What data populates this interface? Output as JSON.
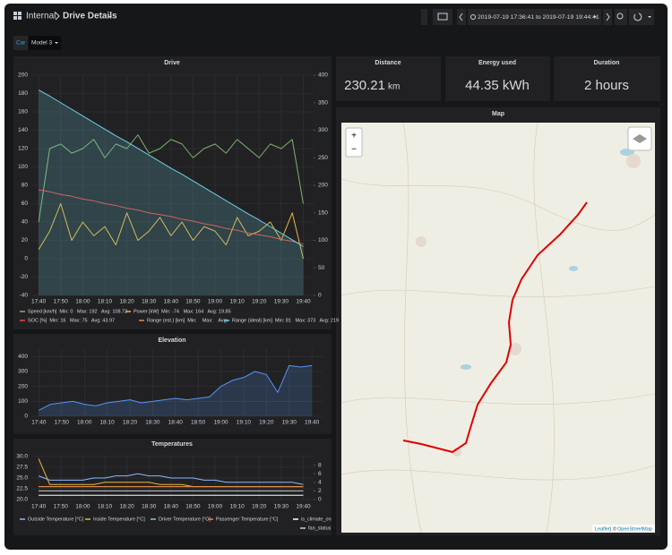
{
  "header": {
    "breadcrumb": "Internal",
    "title": "Drive Details",
    "time_range": "2019-07-19 17:36:41 to 2019-07-19 19:44:41"
  },
  "variables": {
    "label": "Car",
    "value": "Model 3"
  },
  "stats": [
    {
      "title": "Distance",
      "value": "230.21",
      "unit": "km"
    },
    {
      "title": "Energy used",
      "value": "44.35 kWh"
    },
    {
      "title": "Duration",
      "value": "2 hours"
    }
  ],
  "map": {
    "title": "Map",
    "zoom_in": "+",
    "zoom_out": "−",
    "attribution_link": "Leaflet",
    "attribution_text": "| ©",
    "attribution_source": "OpenStreetMap"
  },
  "charts": [
    {
      "type": "line",
      "title": "Drive",
      "x": [
        "17:40",
        "17:45",
        "17:50",
        "17:55",
        "18:00",
        "18:05",
        "18:10",
        "18:15",
        "18:20",
        "18:25",
        "18:30",
        "18:35",
        "18:40",
        "18:45",
        "18:50",
        "18:55",
        "19:00",
        "19:05",
        "19:10",
        "19:15",
        "19:20",
        "19:25",
        "19:30",
        "19:35",
        "19:40"
      ],
      "xlim": [
        "17:36:41",
        "19:44:41"
      ],
      "xticks": [
        "17:40",
        "17:50",
        "18:00",
        "18:10",
        "18:20",
        "18:30",
        "18:40",
        "18:50",
        "19:00",
        "19:10",
        "19:20",
        "19:30",
        "19:40"
      ],
      "ylim": [
        -40,
        200
      ],
      "yticks": [
        -40,
        -20,
        0,
        20,
        40,
        60,
        80,
        100,
        120,
        140,
        160,
        180,
        200
      ],
      "y2lim": [
        0,
        400
      ],
      "y2ticks": [
        0,
        50,
        100,
        150,
        200,
        250,
        300,
        350,
        400
      ],
      "grid": true,
      "series": [
        {
          "name": "Speed [km/h]",
          "stats": "Min: 0   Max: 192   Avg: 108.72",
          "color": "#7eb26d",
          "values": [
            40,
            120,
            125,
            115,
            120,
            130,
            110,
            125,
            120,
            135,
            115,
            120,
            130,
            125,
            110,
            120,
            125,
            115,
            130,
            120,
            110,
            125,
            120,
            130,
            60
          ]
        },
        {
          "name": "Power [kW]",
          "stats": "Min: -74   Max: 164   Avg: 19.85",
          "color": "#eab839",
          "values": [
            10,
            30,
            60,
            20,
            40,
            25,
            35,
            15,
            50,
            20,
            30,
            45,
            25,
            40,
            20,
            35,
            30,
            15,
            45,
            25,
            30,
            40,
            20,
            50,
            0
          ]
        },
        {
          "name": "SOC [%]",
          "stats": "Min: 16   Max: 75   Avg: 43.97",
          "color": "#e24d42",
          "values": [
            75,
            73,
            70,
            68,
            65,
            63,
            60,
            58,
            55,
            53,
            50,
            48,
            46,
            43,
            41,
            38,
            36,
            33,
            31,
            28,
            26,
            24,
            21,
            19,
            16
          ]
        },
        {
          "name": "Range (est.) [km]",
          "stats": "Min:    Max:    Avg:",
          "color": "#ef843c",
          "axis": "y2",
          "values": [
            null,
            null,
            null,
            null,
            null,
            null,
            null,
            null,
            null,
            null,
            null,
            null,
            null,
            null,
            null,
            null,
            null,
            null,
            null,
            null,
            null,
            null,
            null,
            null,
            null
          ]
        },
        {
          "name": "Range (ideal) [km]",
          "stats": "Min: 81   Max: 373   Avg: 219",
          "color": "#6ed0e0",
          "axis": "y2",
          "fill": true,
          "values": [
            373,
            362,
            350,
            338,
            326,
            314,
            302,
            290,
            279,
            267,
            255,
            243,
            231,
            220,
            208,
            196,
            184,
            172,
            160,
            148,
            137,
            125,
            113,
            101,
            89
          ]
        }
      ]
    },
    {
      "type": "line",
      "title": "Elevation",
      "x": [
        "17:40",
        "17:45",
        "17:50",
        "17:55",
        "18:00",
        "18:05",
        "18:10",
        "18:15",
        "18:20",
        "18:25",
        "18:30",
        "18:35",
        "18:40",
        "18:45",
        "18:50",
        "18:55",
        "19:00",
        "19:05",
        "19:10",
        "19:15",
        "19:20",
        "19:25",
        "19:30",
        "19:35",
        "19:40"
      ],
      "xlim": [
        "17:36:41",
        "19:44:41"
      ],
      "xticks": [
        "17:40",
        "17:50",
        "18:00",
        "18:10",
        "18:20",
        "18:30",
        "18:40",
        "18:50",
        "19:00",
        "19:10",
        "19:20",
        "19:30",
        "19:40"
      ],
      "ylim": [
        0,
        450
      ],
      "yticks": [
        0,
        100,
        200,
        300,
        400
      ],
      "grid": true,
      "series": [
        {
          "color": "#5794f2",
          "fill": true,
          "values": [
            40,
            80,
            90,
            100,
            80,
            70,
            90,
            100,
            110,
            90,
            100,
            110,
            120,
            110,
            120,
            130,
            200,
            240,
            260,
            300,
            280,
            160,
            340,
            330,
            340
          ]
        }
      ]
    },
    {
      "type": "line",
      "title": "Temperatures",
      "x": [
        "17:40",
        "17:45",
        "17:50",
        "17:55",
        "18:00",
        "18:05",
        "18:10",
        "18:15",
        "18:20",
        "18:25",
        "18:30",
        "18:35",
        "18:40",
        "18:45",
        "18:50",
        "18:55",
        "19:00",
        "19:05",
        "19:10",
        "19:15",
        "19:20",
        "19:25",
        "19:30",
        "19:35",
        "19:40"
      ],
      "xlim": [
        "17:36:41",
        "19:44:41"
      ],
      "xticks": [
        "17:40",
        "17:50",
        "18:00",
        "18:10",
        "18:20",
        "18:30",
        "18:40",
        "18:50",
        "19:00",
        "19:10",
        "19:20",
        "19:30",
        "19:40"
      ],
      "ylim": [
        20,
        30
      ],
      "yticks": [
        {
          "value": 20,
          "label": "20.0"
        },
        {
          "value": 22.5,
          "label": "22.5"
        },
        {
          "value": 25,
          "label": "25.0"
        },
        {
          "value": 27.5,
          "label": "27.5"
        },
        {
          "value": 30,
          "label": "30.0"
        }
      ],
      "y2lim": [
        0,
        10
      ],
      "y2ticks": [
        0,
        2,
        4,
        6,
        8
      ],
      "grid": true,
      "series": [
        {
          "name": "Outside Temperature [°C]",
          "color": "#8ab8ff",
          "values": [
            25.5,
            24.5,
            24.5,
            24.5,
            24.5,
            25.0,
            25.0,
            25.5,
            25.5,
            26.0,
            25.5,
            25.5,
            25.0,
            25.0,
            25.0,
            24.5,
            24.5,
            24.0,
            24.0,
            24.0,
            24.0,
            24.0,
            24.0,
            24.0,
            23.5
          ]
        },
        {
          "name": "Inside Temperature [°C]",
          "color": "#eab839",
          "values": [
            29.5,
            23.5,
            23.5,
            23.5,
            23.5,
            23.5,
            24.0,
            24.0,
            24.0,
            24.0,
            24.0,
            23.5,
            23.5,
            23.5,
            23.0,
            23.0,
            23.0,
            23.0,
            23.0,
            23.0,
            23.0,
            23.0,
            23.0,
            23.0,
            23.0
          ]
        },
        {
          "name": "Driver Temperature [°C]",
          "color": "#6ed0e0",
          "values": [
            23,
            23,
            23,
            23,
            23,
            23,
            23,
            23,
            23,
            23,
            23,
            23,
            23,
            23,
            23,
            23,
            23,
            23,
            23,
            23,
            23,
            23,
            23,
            23,
            23
          ]
        },
        {
          "name": "Passenger Temperature [°C]",
          "color": "#ef843c",
          "values": [
            23,
            23,
            23,
            23,
            23,
            23,
            23,
            23,
            23,
            23,
            23,
            23,
            23,
            23,
            23,
            23,
            23,
            23,
            23,
            23,
            23,
            23,
            23,
            23,
            23
          ]
        },
        {
          "name": "is_climate_on",
          "color": "#ffffff",
          "axis": "y2",
          "values": [
            1,
            1,
            1,
            1,
            1,
            1,
            1,
            1,
            1,
            1,
            1,
            1,
            1,
            1,
            1,
            1,
            1,
            1,
            1,
            1,
            1,
            1,
            1,
            1,
            1
          ]
        },
        {
          "name": "fan_status",
          "color": "#c7d0d9",
          "axis": "y2",
          "values": [
            2,
            2,
            2,
            2,
            2,
            2,
            2,
            2,
            2,
            2,
            2,
            2,
            2,
            2,
            2,
            2,
            2,
            2,
            2,
            2,
            2,
            2,
            2,
            2,
            2
          ]
        }
      ]
    }
  ]
}
